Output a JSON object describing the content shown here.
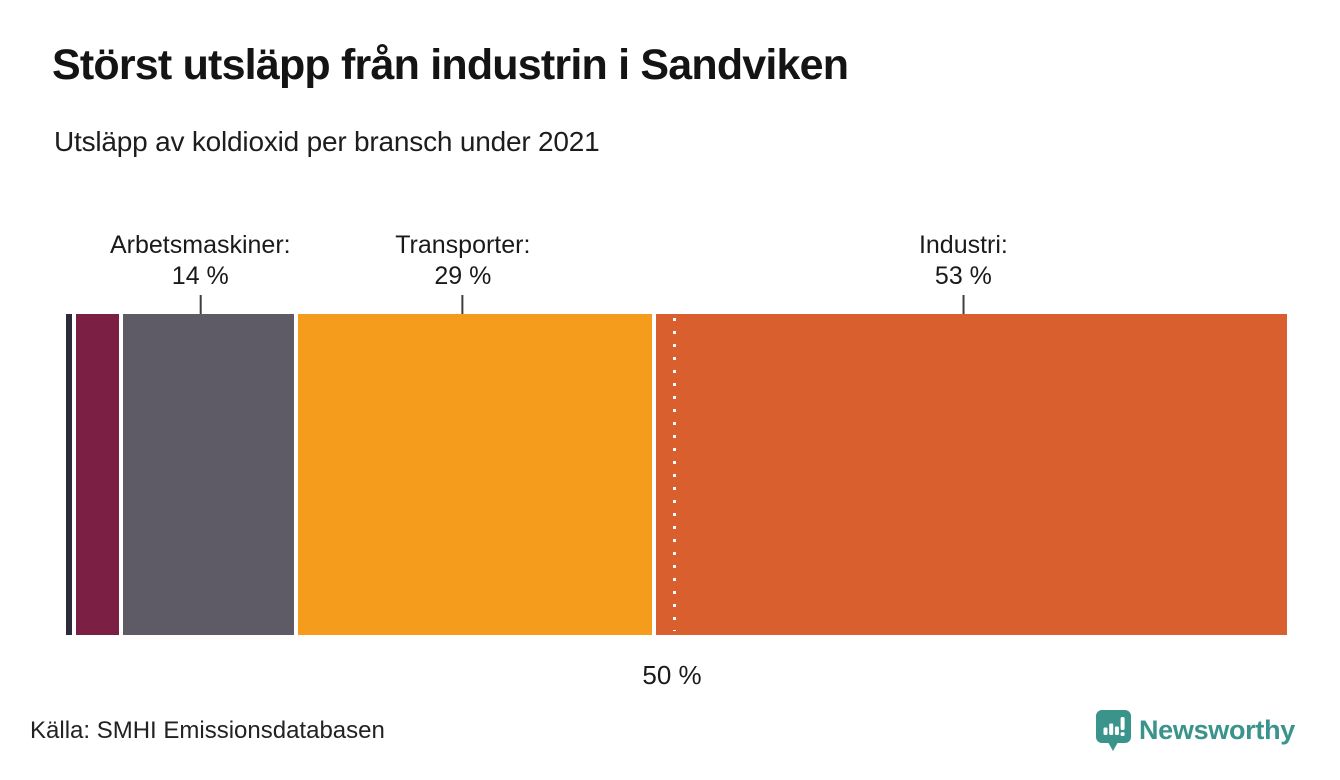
{
  "header": {
    "title": "Störst utsläpp från industrin i Sandviken",
    "subtitle": "Utsläpp av koldioxid per bransch under 2021"
  },
  "chart_data": {
    "type": "bar",
    "variant": "horizontal-stacked-100-percent",
    "unit": "%",
    "xlim": [
      0,
      100
    ],
    "grid": false,
    "axis_visible": false,
    "segments": [
      {
        "label": "",
        "value": 0.5,
        "color": "#2d2b3b",
        "annotated": false,
        "annotation": "",
        "value_label": ""
      },
      {
        "label": "",
        "value": 3.5,
        "color": "#7c1f44",
        "annotated": false,
        "annotation": "",
        "value_label": ""
      },
      {
        "label": "Arbetsmaskiner",
        "value": 14,
        "color": "#5e5a66",
        "annotated": true,
        "annotation": "Arbetsmaskiner:",
        "value_label": "14 %"
      },
      {
        "label": "Transporter",
        "value": 29,
        "color": "#f59c1c",
        "annotated": true,
        "annotation": "Transporter:",
        "value_label": "29 %"
      },
      {
        "label": "Industri",
        "value": 53,
        "color": "#d95f2e",
        "annotated": true,
        "annotation": "Industri:",
        "value_label": "53 %"
      }
    ],
    "reference_line": {
      "position_pct": 50,
      "label": "50 %",
      "style": "dotted-white-vertical"
    }
  },
  "footer": {
    "source": "Källa: SMHI Emissionsdatabasen",
    "brand": "Newsworthy",
    "brand_color": "#3a948c",
    "brand_icon": "newsworthy-pin-barchart-icon"
  }
}
